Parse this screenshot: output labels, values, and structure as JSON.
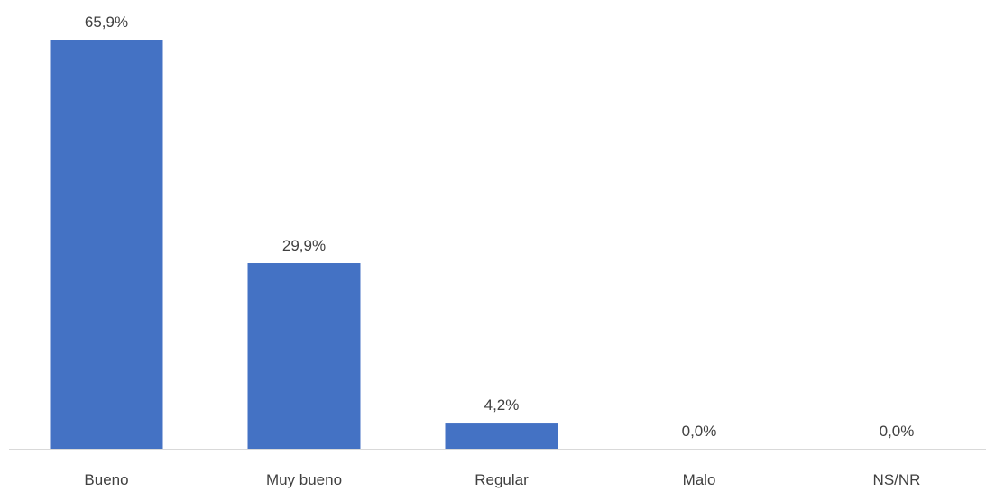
{
  "chart_data": {
    "type": "bar",
    "title": "",
    "xlabel": "",
    "ylabel": "",
    "categories": [
      "Bueno",
      "Muy bueno",
      "Regular",
      "Malo",
      "NS/NR"
    ],
    "values": [
      65.9,
      29.9,
      4.2,
      0.0,
      0.0
    ],
    "data_labels": [
      "65,9%",
      "29,9%",
      "4,2%",
      "0,0%",
      "0,0%"
    ],
    "ylim": [
      0,
      65.9
    ],
    "grid": false,
    "legend": "none",
    "colors": {
      "bar": "#4472C4",
      "axis": "#D9D9D9",
      "text": "#404040"
    }
  }
}
